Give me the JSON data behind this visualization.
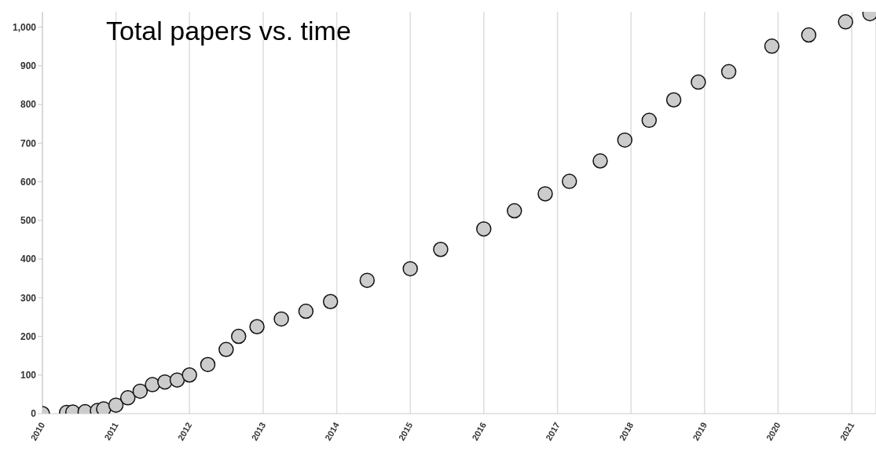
{
  "chart_data": {
    "type": "scatter",
    "title": "Total papers vs. time",
    "x": [
      "2010-01",
      "2010-05",
      "2010-06",
      "2010-08",
      "2010-10",
      "2010-11",
      "2011-01",
      "2011-03",
      "2011-05",
      "2011-07",
      "2011-09",
      "2011-11",
      "2012-01",
      "2012-04",
      "2012-07",
      "2012-09",
      "2012-12",
      "2013-04",
      "2013-08",
      "2013-12",
      "2014-06",
      "2015-01",
      "2015-06",
      "2016-01",
      "2016-06",
      "2016-11",
      "2017-03",
      "2017-08",
      "2017-12",
      "2018-04",
      "2018-08",
      "2018-12",
      "2019-05",
      "2019-12",
      "2020-06",
      "2020-12",
      "2021-04"
    ],
    "values": [
      0,
      3,
      4,
      5,
      8,
      12,
      22,
      41,
      58,
      75,
      82,
      87,
      100,
      127,
      166,
      200,
      225,
      245,
      265,
      290,
      345,
      375,
      425,
      478,
      525,
      569,
      601,
      654,
      708,
      759,
      812,
      858,
      885,
      951,
      980,
      1014,
      1035
    ],
    "color": "#cccccc",
    "marker": "circle",
    "grid": "x",
    "xlim": [
      "2010-01",
      "2021-05"
    ],
    "xticks": [
      "2010",
      "2011",
      "2012",
      "2013",
      "2014",
      "2015",
      "2016",
      "2017",
      "2018",
      "2019",
      "2020",
      "2021"
    ],
    "ylim": [
      0,
      1040
    ],
    "yticks": [
      0,
      100,
      200,
      300,
      400,
      500,
      600,
      700,
      800,
      900,
      {
        "value": 1000,
        "label": "1,000"
      }
    ]
  }
}
